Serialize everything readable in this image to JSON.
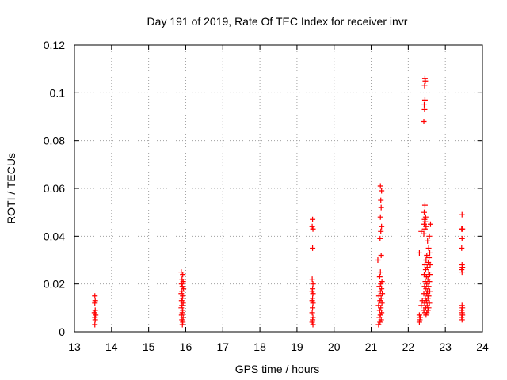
{
  "chart_data": {
    "type": "scatter",
    "title": "Day 191 of 2019, Rate Of TEC Index for receiver invr",
    "xlabel": "GPS time / hours",
    "ylabel": "ROTI / TECUs",
    "xlim": [
      13,
      24
    ],
    "ylim": [
      0,
      0.12
    ],
    "xticks": [
      13,
      14,
      15,
      16,
      17,
      18,
      19,
      20,
      21,
      22,
      23,
      24
    ],
    "xtick_labels": [
      "13",
      "14",
      "15",
      "16",
      "17",
      "18",
      "19",
      "20",
      "21",
      "22",
      "23",
      "24"
    ],
    "yticks": [
      0,
      0.02,
      0.04,
      0.06,
      0.08,
      0.1,
      0.12
    ],
    "ytick_labels": [
      "0",
      "0.02",
      "0.04",
      "0.06",
      "0.08",
      "0.1",
      "0.12"
    ],
    "grid": true,
    "marker": "+",
    "color": "#ff0000",
    "series": [
      {
        "name": "ROTI",
        "points": [
          [
            13.55,
            0.015
          ],
          [
            13.56,
            0.013
          ],
          [
            13.55,
            0.012
          ],
          [
            13.56,
            0.009
          ],
          [
            13.54,
            0.008
          ],
          [
            13.57,
            0.007
          ],
          [
            13.55,
            0.006
          ],
          [
            13.56,
            0.005
          ],
          [
            13.55,
            0.003
          ],
          [
            15.88,
            0.025
          ],
          [
            15.92,
            0.024
          ],
          [
            15.9,
            0.022
          ],
          [
            15.93,
            0.021
          ],
          [
            15.89,
            0.02
          ],
          [
            15.91,
            0.019
          ],
          [
            15.94,
            0.018
          ],
          [
            15.9,
            0.017
          ],
          [
            15.88,
            0.016
          ],
          [
            15.92,
            0.015
          ],
          [
            15.91,
            0.014
          ],
          [
            15.89,
            0.013
          ],
          [
            15.93,
            0.012
          ],
          [
            15.9,
            0.011
          ],
          [
            15.88,
            0.01
          ],
          [
            15.92,
            0.009
          ],
          [
            15.91,
            0.008
          ],
          [
            15.89,
            0.007
          ],
          [
            15.93,
            0.006
          ],
          [
            15.9,
            0.005
          ],
          [
            15.92,
            0.004
          ],
          [
            15.91,
            0.003
          ],
          [
            19.42,
            0.047
          ],
          [
            19.41,
            0.044
          ],
          [
            19.43,
            0.043
          ],
          [
            19.42,
            0.035
          ],
          [
            19.41,
            0.022
          ],
          [
            19.43,
            0.02
          ],
          [
            19.42,
            0.018
          ],
          [
            19.41,
            0.017
          ],
          [
            19.43,
            0.016
          ],
          [
            19.42,
            0.014
          ],
          [
            19.41,
            0.013
          ],
          [
            19.43,
            0.012
          ],
          [
            19.42,
            0.01
          ],
          [
            19.41,
            0.008
          ],
          [
            19.43,
            0.006
          ],
          [
            19.42,
            0.005
          ],
          [
            19.41,
            0.004
          ],
          [
            19.43,
            0.003
          ],
          [
            21.25,
            0.061
          ],
          [
            21.28,
            0.059
          ],
          [
            21.26,
            0.055
          ],
          [
            21.27,
            0.052
          ],
          [
            21.25,
            0.048
          ],
          [
            21.28,
            0.044
          ],
          [
            21.26,
            0.042
          ],
          [
            21.24,
            0.039
          ],
          [
            21.27,
            0.032
          ],
          [
            21.18,
            0.03
          ],
          [
            21.25,
            0.025
          ],
          [
            21.23,
            0.023
          ],
          [
            21.29,
            0.021
          ],
          [
            21.26,
            0.02
          ],
          [
            21.22,
            0.019
          ],
          [
            21.28,
            0.018
          ],
          [
            21.25,
            0.017
          ],
          [
            21.3,
            0.016
          ],
          [
            21.21,
            0.015
          ],
          [
            21.27,
            0.014
          ],
          [
            21.24,
            0.013
          ],
          [
            21.29,
            0.012
          ],
          [
            21.2,
            0.011
          ],
          [
            21.26,
            0.01
          ],
          [
            21.23,
            0.009
          ],
          [
            21.28,
            0.008
          ],
          [
            21.25,
            0.007
          ],
          [
            21.22,
            0.006
          ],
          [
            21.27,
            0.005
          ],
          [
            21.24,
            0.004
          ],
          [
            21.2,
            0.003
          ],
          [
            22.45,
            0.106
          ],
          [
            22.46,
            0.105
          ],
          [
            22.44,
            0.103
          ],
          [
            22.45,
            0.097
          ],
          [
            22.43,
            0.095
          ],
          [
            22.44,
            0.093
          ],
          [
            22.42,
            0.088
          ],
          [
            22.45,
            0.053
          ],
          [
            22.43,
            0.05
          ],
          [
            22.47,
            0.048
          ],
          [
            22.44,
            0.047
          ],
          [
            22.46,
            0.046
          ],
          [
            22.43,
            0.045
          ],
          [
            22.48,
            0.044
          ],
          [
            22.45,
            0.043
          ],
          [
            22.35,
            0.042
          ],
          [
            22.42,
            0.041
          ],
          [
            22.6,
            0.045
          ],
          [
            22.57,
            0.04
          ],
          [
            22.52,
            0.038
          ],
          [
            22.55,
            0.035
          ],
          [
            22.3,
            0.033
          ],
          [
            22.58,
            0.033
          ],
          [
            22.5,
            0.032
          ],
          [
            22.56,
            0.031
          ],
          [
            22.48,
            0.03
          ],
          [
            22.54,
            0.029
          ],
          [
            22.45,
            0.028
          ],
          [
            22.59,
            0.028
          ],
          [
            22.51,
            0.027
          ],
          [
            22.47,
            0.026
          ],
          [
            22.55,
            0.025
          ],
          [
            22.43,
            0.024
          ],
          [
            22.58,
            0.024
          ],
          [
            22.49,
            0.023
          ],
          [
            22.53,
            0.022
          ],
          [
            22.46,
            0.021
          ],
          [
            22.57,
            0.021
          ],
          [
            22.5,
            0.02
          ],
          [
            22.44,
            0.019
          ],
          [
            22.55,
            0.019
          ],
          [
            22.48,
            0.018
          ],
          [
            22.52,
            0.017
          ],
          [
            22.58,
            0.017
          ],
          [
            22.42,
            0.016
          ],
          [
            22.5,
            0.016
          ],
          [
            22.55,
            0.015
          ],
          [
            22.46,
            0.014
          ],
          [
            22.53,
            0.014
          ],
          [
            22.38,
            0.013
          ],
          [
            22.49,
            0.013
          ],
          [
            22.57,
            0.012
          ],
          [
            22.44,
            0.012
          ],
          [
            22.51,
            0.011
          ],
          [
            22.35,
            0.011
          ],
          [
            22.55,
            0.01
          ],
          [
            22.47,
            0.01
          ],
          [
            22.42,
            0.009
          ],
          [
            22.53,
            0.009
          ],
          [
            22.45,
            0.008
          ],
          [
            22.5,
            0.008
          ],
          [
            22.3,
            0.007
          ],
          [
            22.48,
            0.007
          ],
          [
            22.32,
            0.006
          ],
          [
            22.31,
            0.005
          ],
          [
            22.3,
            0.004
          ],
          [
            23.45,
            0.049
          ],
          [
            23.44,
            0.043
          ],
          [
            23.46,
            0.043
          ],
          [
            23.45,
            0.039
          ],
          [
            23.44,
            0.035
          ],
          [
            23.45,
            0.028
          ],
          [
            23.46,
            0.027
          ],
          [
            23.44,
            0.026
          ],
          [
            23.45,
            0.025
          ],
          [
            23.45,
            0.011
          ],
          [
            23.46,
            0.01
          ],
          [
            23.44,
            0.009
          ],
          [
            23.45,
            0.008
          ],
          [
            23.46,
            0.007
          ],
          [
            23.44,
            0.006
          ],
          [
            23.45,
            0.005
          ]
        ]
      }
    ]
  }
}
